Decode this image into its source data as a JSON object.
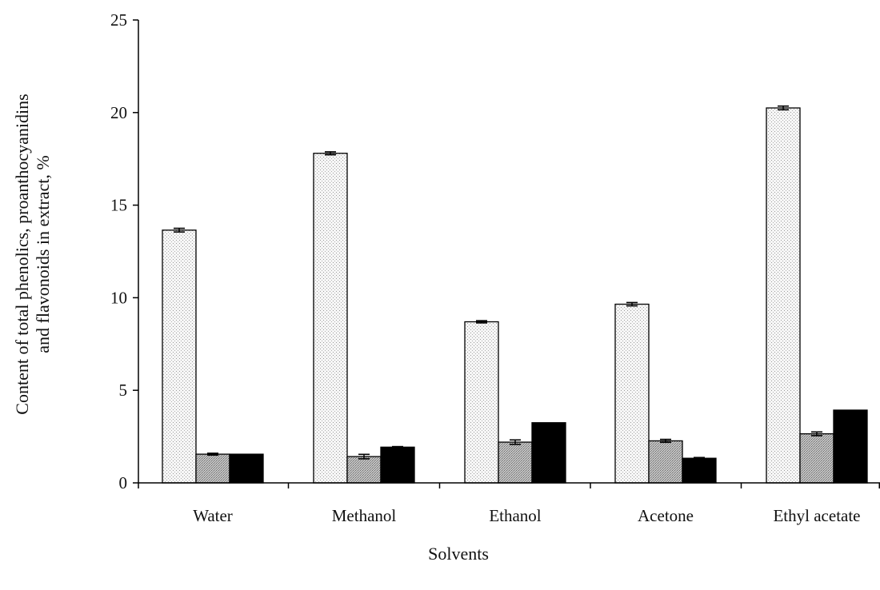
{
  "chart_data": {
    "type": "bar",
    "title": "",
    "xlabel": "Solvents",
    "ylabel_lines": [
      "Content of  total phenolics, proanthocyanidins",
      "and flavonoids in extract, %"
    ],
    "ylim": [
      0,
      25
    ],
    "yticks": [
      0,
      5,
      10,
      15,
      20,
      25
    ],
    "grid": false,
    "legend": "none",
    "categories": [
      "Water",
      "Methanol",
      "Ethanol",
      "Acetone",
      "Ethyl acetate"
    ],
    "series": [
      {
        "values": [
          13.65,
          17.8,
          8.7,
          9.65,
          20.25
        ],
        "errors": [
          0.1,
          0.08,
          0.06,
          0.09,
          0.1
        ],
        "fill": "stipple-light"
      },
      {
        "values": [
          1.55,
          1.42,
          2.2,
          2.27,
          2.65
        ],
        "errors": [
          0.05,
          0.12,
          0.12,
          0.08,
          0.1
        ],
        "fill": "stipple-dark"
      },
      {
        "values": [
          1.55,
          1.93,
          3.25,
          1.33,
          3.93
        ],
        "errors": [
          0.0,
          0.03,
          0.0,
          0.04,
          0.0
        ],
        "fill": "solid-black"
      }
    ]
  }
}
